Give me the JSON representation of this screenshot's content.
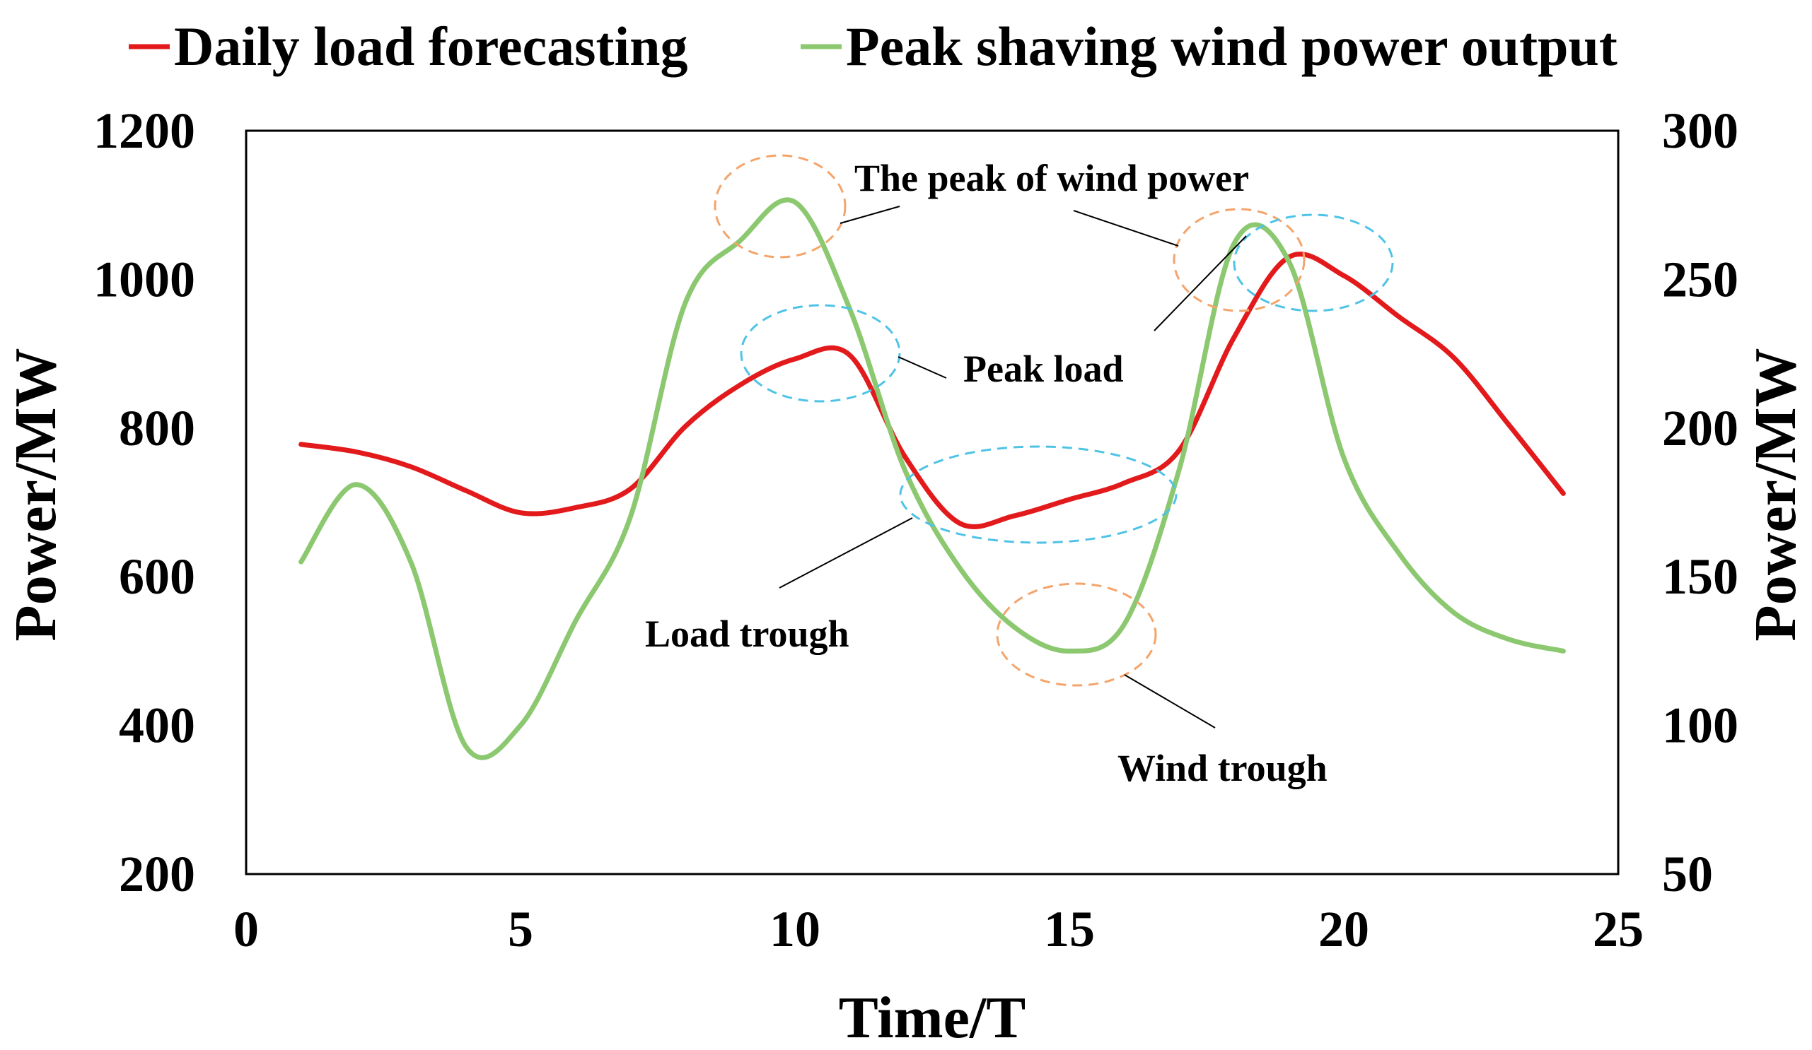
{
  "chart_data": {
    "type": "line",
    "title": "",
    "xlabel": "Time/T",
    "ylabel": "Power/MW",
    "y2label": "Power/MW",
    "xlim": [
      0,
      25
    ],
    "ylim": [
      200,
      1200
    ],
    "y2lim": [
      50,
      300
    ],
    "x_ticks": [
      0,
      5,
      10,
      15,
      20,
      25
    ],
    "y_ticks": [
      200,
      400,
      600,
      800,
      1000,
      1200
    ],
    "y2_ticks": [
      50,
      100,
      150,
      200,
      250,
      300
    ],
    "grid": false,
    "legend_position": "top",
    "series": [
      {
        "name": "Daily load forecasting",
        "axis": "left",
        "color": "#e31a1c",
        "x": [
          1,
          2,
          3,
          4,
          5,
          6,
          7,
          8,
          9,
          10,
          11,
          12,
          13,
          14,
          15,
          16,
          17,
          18,
          19,
          20,
          21,
          22,
          23,
          24
        ],
        "values": [
          778,
          768,
          748,
          716,
          686,
          693,
          718,
          802,
          858,
          893,
          898,
          762,
          672,
          682,
          704,
          726,
          770,
          922,
          1030,
          1005,
          950,
          895,
          805,
          712
        ]
      },
      {
        "name": "Peak shaving wind power output",
        "axis": "right",
        "color": "#8cc870",
        "x": [
          1,
          2,
          3,
          4,
          5,
          6,
          7,
          8,
          9,
          10,
          11,
          12,
          13,
          14,
          15,
          16,
          17,
          18,
          19,
          20,
          21,
          22,
          23,
          24
        ],
        "values": [
          155,
          181,
          155,
          93,
          100,
          135,
          170,
          242,
          263,
          276,
          240,
          186,
          153,
          133,
          125,
          134,
          186,
          262,
          256,
          190,
          158,
          138,
          129,
          125
        ]
      }
    ],
    "annotations": [
      {
        "text": "The peak of wind power"
      },
      {
        "text": "Peak load"
      },
      {
        "text": "Load trough"
      },
      {
        "text": "Wind trough"
      }
    ]
  }
}
